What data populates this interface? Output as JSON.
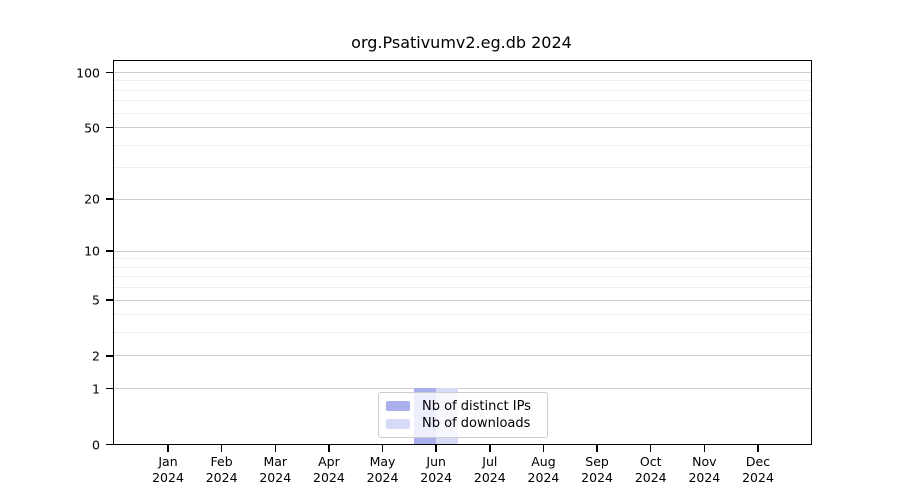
{
  "chart_data": {
    "type": "bar",
    "title": "org.Psativumv2.eg.db 2024",
    "categories": [
      "Jan",
      "Feb",
      "Mar",
      "Apr",
      "May",
      "Jun",
      "Jul",
      "Aug",
      "Sep",
      "Oct",
      "Nov",
      "Dec"
    ],
    "year_label": "2024",
    "series": [
      {
        "name": "Nb of distinct IPs",
        "color": "#aab0ee",
        "values": [
          0,
          0,
          0,
          0,
          0,
          1,
          0,
          0,
          0,
          0,
          0,
          0
        ]
      },
      {
        "name": "Nb of downloads",
        "color": "#d8dbf7",
        "values": [
          0,
          0,
          0,
          0,
          0,
          1,
          0,
          0,
          0,
          0,
          0,
          0
        ]
      }
    ],
    "xlabel": "",
    "ylabel": "",
    "y_ticks": [
      0,
      1,
      2,
      5,
      10,
      20,
      50,
      100
    ],
    "y_minor_gridlines": [
      3,
      4,
      6,
      7,
      8,
      9,
      30,
      40,
      60,
      70,
      80,
      90
    ],
    "y_scale": "log1p",
    "ylim": [
      0,
      114
    ],
    "grid": true,
    "legend_position": "bottom-center"
  },
  "colors": {
    "major_grid": "#cdcdcd",
    "minor_grid": "#efefef",
    "frame": "#000000",
    "background": "#ffffff",
    "legend_border": "#cccccc",
    "text": "#000000"
  }
}
